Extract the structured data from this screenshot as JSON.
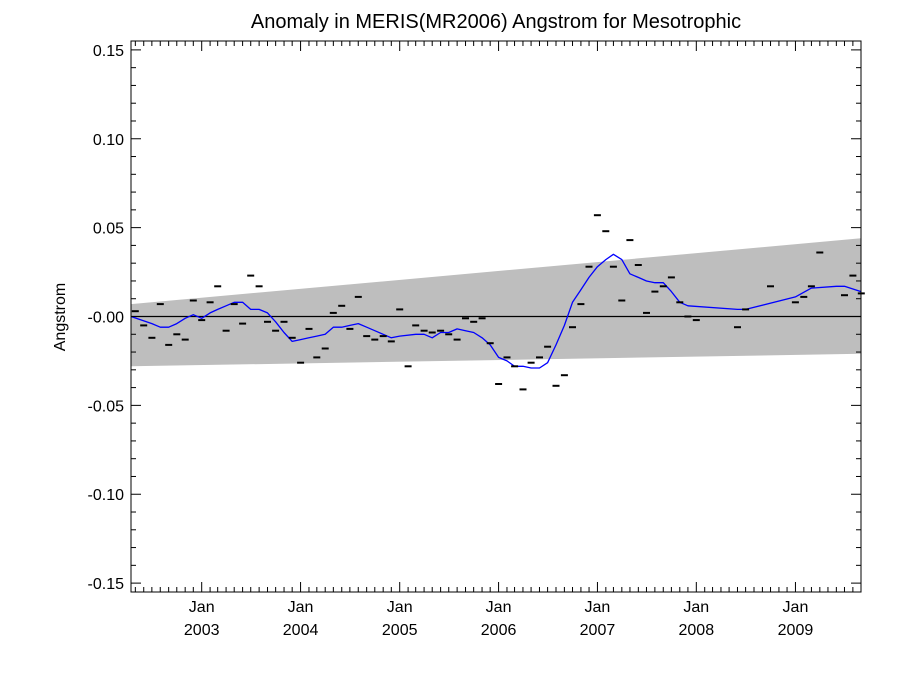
{
  "chart_data": {
    "type": "line",
    "title": "Anomaly in MERIS(MR2006) Angstrom for Mesotrophic",
    "xlabel": "",
    "ylabel": "Angstrom",
    "ylim": [
      -0.155,
      0.155
    ],
    "xlim": [
      "2002-04-15",
      "2009-08-31"
    ],
    "grid": false,
    "legend": "none",
    "y_ticks": [
      "0.15",
      "0.10",
      "0.05",
      "-0.00",
      "-0.05",
      "-0.10",
      "-0.15"
    ],
    "x_ticks": [
      {
        "date": "2003-01-01",
        "month": "Jan",
        "year": "2003"
      },
      {
        "date": "2004-01-01",
        "month": "Jan",
        "year": "2004"
      },
      {
        "date": "2005-01-01",
        "month": "Jan",
        "year": "2005"
      },
      {
        "date": "2006-01-01",
        "month": "Jan",
        "year": "2006"
      },
      {
        "date": "2007-01-01",
        "month": "Jan",
        "year": "2007"
      },
      {
        "date": "2008-01-01",
        "month": "Jan",
        "year": "2008"
      },
      {
        "date": "2009-01-01",
        "month": "Jan",
        "year": "2009"
      }
    ],
    "band": {
      "start": {
        "date": "2002-04-15",
        "upper": 0.007,
        "lower": -0.028
      },
      "end": {
        "date": "2009-08-31",
        "upper": 0.044,
        "lower": -0.021
      }
    },
    "zero_line": 0,
    "colors": {
      "band": "#bebebe",
      "smooth_line": "#0000ff",
      "monthly_marks": "#000000",
      "zero_line": "#000000"
    },
    "series": [
      {
        "type": "scatter",
        "marker": "dash",
        "points": [
          [
            "2002-05-01",
            0.003
          ],
          [
            "2002-06-01",
            -0.005
          ],
          [
            "2002-07-01",
            -0.012
          ],
          [
            "2002-08-01",
            0.007
          ],
          [
            "2002-09-01",
            -0.016
          ],
          [
            "2002-10-01",
            -0.01
          ],
          [
            "2002-11-01",
            -0.013
          ],
          [
            "2002-12-01",
            0.009
          ],
          [
            "2003-01-01",
            -0.002
          ],
          [
            "2003-02-01",
            0.008
          ],
          [
            "2003-03-01",
            0.017
          ],
          [
            "2003-04-01",
            -0.008
          ],
          [
            "2003-05-01",
            0.007
          ],
          [
            "2003-06-01",
            -0.004
          ],
          [
            "2003-07-01",
            0.023
          ],
          [
            "2003-08-01",
            0.017
          ],
          [
            "2003-09-01",
            -0.003
          ],
          [
            "2003-10-01",
            -0.008
          ],
          [
            "2003-11-01",
            -0.003
          ],
          [
            "2003-12-01",
            -0.012
          ],
          [
            "2004-01-01",
            -0.026
          ],
          [
            "2004-02-01",
            -0.007
          ],
          [
            "2004-03-01",
            -0.023
          ],
          [
            "2004-04-01",
            -0.018
          ],
          [
            "2004-05-01",
            0.002
          ],
          [
            "2004-06-01",
            0.006
          ],
          [
            "2004-07-01",
            -0.007
          ],
          [
            "2004-08-01",
            0.011
          ],
          [
            "2004-09-01",
            -0.011
          ],
          [
            "2004-10-01",
            -0.013
          ],
          [
            "2004-11-01",
            -0.011
          ],
          [
            "2004-12-01",
            -0.014
          ],
          [
            "2005-01-01",
            0.004
          ],
          [
            "2005-02-01",
            -0.028
          ],
          [
            "2005-03-01",
            -0.005
          ],
          [
            "2005-04-01",
            -0.008
          ],
          [
            "2005-05-01",
            -0.009
          ],
          [
            "2005-06-01",
            -0.008
          ],
          [
            "2005-07-01",
            -0.01
          ],
          [
            "2005-08-01",
            -0.013
          ],
          [
            "2005-09-01",
            -0.001
          ],
          [
            "2005-10-01",
            -0.003
          ],
          [
            "2005-11-01",
            -0.001
          ],
          [
            "2005-12-01",
            -0.015
          ],
          [
            "2006-01-01",
            -0.038
          ],
          [
            "2006-02-01",
            -0.023
          ],
          [
            "2006-03-01",
            -0.028
          ],
          [
            "2006-04-01",
            -0.041
          ],
          [
            "2006-05-01",
            -0.026
          ],
          [
            "2006-06-01",
            -0.023
          ],
          [
            "2006-07-01",
            -0.017
          ],
          [
            "2006-08-01",
            -0.039
          ],
          [
            "2006-09-01",
            -0.033
          ],
          [
            "2006-10-01",
            -0.006
          ],
          [
            "2006-11-01",
            0.007
          ],
          [
            "2006-12-01",
            0.028
          ],
          [
            "2007-01-01",
            0.057
          ],
          [
            "2007-02-01",
            0.048
          ],
          [
            "2007-03-01",
            0.028
          ],
          [
            "2007-04-01",
            0.009
          ],
          [
            "2007-05-01",
            0.043
          ],
          [
            "2007-06-01",
            0.029
          ],
          [
            "2007-07-01",
            0.002
          ],
          [
            "2007-08-01",
            0.014
          ],
          [
            "2007-09-01",
            0.017
          ],
          [
            "2007-10-01",
            0.022
          ],
          [
            "2007-11-01",
            0.008
          ],
          [
            "2007-12-01",
            0
          ],
          [
            "2008-01-01",
            -0.002
          ],
          [
            "2008-06-01",
            -0.006
          ],
          [
            "2008-07-01",
            0.004
          ],
          [
            "2008-10-01",
            0.017
          ],
          [
            "2009-01-01",
            0.008
          ],
          [
            "2009-02-01",
            0.011
          ],
          [
            "2009-03-01",
            0.017
          ],
          [
            "2009-04-01",
            0.036
          ],
          [
            "2009-07-01",
            0.012
          ],
          [
            "2009-08-01",
            0.023
          ],
          [
            "2009-09-01",
            0.013
          ]
        ]
      },
      {
        "type": "line",
        "points": [
          [
            "2002-04-15",
            0.0
          ],
          [
            "2002-07-01",
            -0.004
          ],
          [
            "2002-08-01",
            -0.006
          ],
          [
            "2002-09-01",
            -0.006
          ],
          [
            "2002-10-01",
            -0.004
          ],
          [
            "2002-11-01",
            -0.001
          ],
          [
            "2002-12-01",
            0.001
          ],
          [
            "2003-01-01",
            -0.001
          ],
          [
            "2003-02-01",
            0.002
          ],
          [
            "2003-03-01",
            0.004
          ],
          [
            "2003-04-01",
            0.006
          ],
          [
            "2003-05-01",
            0.008
          ],
          [
            "2003-06-01",
            0.008
          ],
          [
            "2003-07-01",
            0.004
          ],
          [
            "2003-08-01",
            0.004
          ],
          [
            "2003-09-01",
            0.002
          ],
          [
            "2003-10-01",
            -0.003
          ],
          [
            "2003-11-01",
            -0.009
          ],
          [
            "2003-12-01",
            -0.014
          ],
          [
            "2004-01-01",
            -0.013
          ],
          [
            "2004-02-01",
            -0.012
          ],
          [
            "2004-03-01",
            -0.011
          ],
          [
            "2004-04-01",
            -0.01
          ],
          [
            "2004-05-01",
            -0.006
          ],
          [
            "2004-06-01",
            -0.006
          ],
          [
            "2004-07-01",
            -0.005
          ],
          [
            "2004-08-01",
            -0.004
          ],
          [
            "2004-09-01",
            -0.006
          ],
          [
            "2004-10-01",
            -0.008
          ],
          [
            "2004-11-01",
            -0.01
          ],
          [
            "2004-12-01",
            -0.012
          ],
          [
            "2005-01-01",
            -0.011
          ],
          [
            "2005-03-01",
            -0.01
          ],
          [
            "2005-04-01",
            -0.01
          ],
          [
            "2005-05-01",
            -0.012
          ],
          [
            "2005-06-01",
            -0.009
          ],
          [
            "2005-07-01",
            -0.009
          ],
          [
            "2005-08-01",
            -0.007
          ],
          [
            "2005-09-01",
            -0.008
          ],
          [
            "2005-10-01",
            -0.009
          ],
          [
            "2005-11-01",
            -0.012
          ],
          [
            "2005-12-01",
            -0.016
          ],
          [
            "2006-01-01",
            -0.023
          ],
          [
            "2006-02-01",
            -0.025
          ],
          [
            "2006-03-01",
            -0.028
          ],
          [
            "2006-04-01",
            -0.028
          ],
          [
            "2006-05-01",
            -0.029
          ],
          [
            "2006-06-01",
            -0.029
          ],
          [
            "2006-07-01",
            -0.026
          ],
          [
            "2006-08-01",
            -0.016
          ],
          [
            "2006-09-01",
            -0.005
          ],
          [
            "2006-10-01",
            0.008
          ],
          [
            "2006-11-01",
            0.015
          ],
          [
            "2006-12-01",
            0.022
          ],
          [
            "2007-01-01",
            0.028
          ],
          [
            "2007-02-01",
            0.032
          ],
          [
            "2007-03-01",
            0.035
          ],
          [
            "2007-04-01",
            0.032
          ],
          [
            "2007-05-01",
            0.024
          ],
          [
            "2007-06-01",
            0.022
          ],
          [
            "2007-07-01",
            0.02
          ],
          [
            "2007-08-01",
            0.019
          ],
          [
            "2007-09-01",
            0.019
          ],
          [
            "2007-10-01",
            0.014
          ],
          [
            "2007-11-01",
            0.008
          ],
          [
            "2007-12-01",
            0.006
          ],
          [
            "2008-06-01",
            0.004
          ],
          [
            "2008-07-01",
            0.004
          ],
          [
            "2009-01-01",
            0.011
          ],
          [
            "2009-03-01",
            0.016
          ],
          [
            "2009-06-01",
            0.017
          ],
          [
            "2009-07-01",
            0.017
          ],
          [
            "2009-08-31",
            0.014
          ]
        ]
      }
    ]
  }
}
